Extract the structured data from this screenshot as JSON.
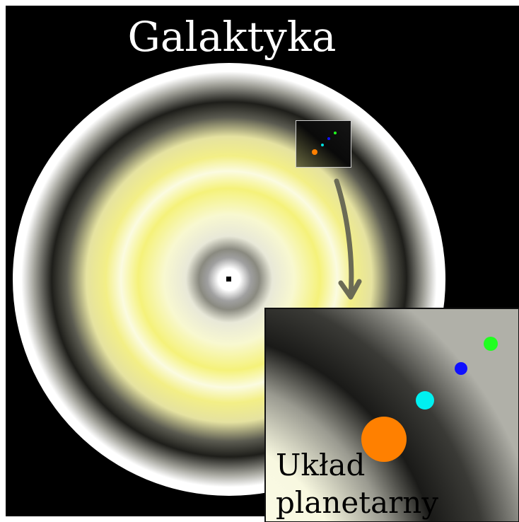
{
  "title": "Galaktyka",
  "inset_label": [
    "Układ",
    "planetarny"
  ]
}
